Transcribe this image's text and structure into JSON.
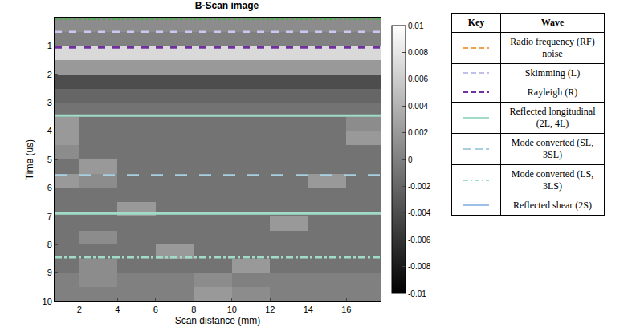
{
  "chart_data": {
    "type": "heatmap",
    "title": "B-Scan image",
    "x_label": "Scan distance (mm)",
    "y_label": "Time (us)",
    "xlim": [
      0.7,
      17.8
    ],
    "xticks": [
      2,
      4,
      6,
      8,
      10,
      12,
      14,
      16
    ],
    "ylim": [
      10,
      0
    ],
    "yticks": [
      1,
      2,
      3,
      4,
      5,
      6,
      7,
      8,
      9,
      10
    ],
    "x": [
      1,
      3,
      5,
      7,
      9,
      11,
      13,
      15,
      17
    ],
    "y": [
      0.25,
      0.75,
      1.25,
      1.75,
      2.25,
      2.75,
      3.25,
      3.75,
      4.25,
      4.75,
      5.25,
      5.75,
      6.25,
      6.75,
      7.25,
      7.75,
      8.25,
      8.75,
      9.25,
      9.75
    ],
    "z": [
      [
        0.001,
        0.001,
        0.001,
        0.001,
        0.001,
        0.001,
        0.001,
        0.001,
        0.001
      ],
      [
        0,
        0,
        0,
        0,
        0,
        0,
        0,
        0,
        0
      ],
      [
        0.007,
        0.007,
        0.007,
        0.007,
        0.007,
        0.007,
        0.007,
        0.007,
        0.007
      ],
      [
        0.002,
        0.002,
        0.002,
        0.002,
        0.002,
        0.002,
        0.002,
        0.002,
        0.002
      ],
      [
        -0.004,
        -0.004,
        -0.004,
        -0.004,
        -0.004,
        -0.004,
        -0.004,
        -0.004,
        -0.004
      ],
      [
        -0.002,
        -0.002,
        -0.002,
        -0.002,
        -0.002,
        -0.002,
        -0.002,
        -0.002,
        -0.002
      ],
      [
        -0.001,
        -0.001,
        -0.001,
        -0.001,
        -0.001,
        -0.001,
        -0.001,
        -0.001,
        -0.001
      ],
      [
        0.002,
        -0.001,
        -0.001,
        -0.001,
        -0.001,
        -0.001,
        -0.001,
        -0.001,
        0.001
      ],
      [
        0.002,
        -0.001,
        -0.001,
        -0.001,
        -0.001,
        -0.001,
        -0.001,
        -0.001,
        0.002
      ],
      [
        0.001,
        -0.001,
        -0.001,
        -0.001,
        -0.001,
        -0.001,
        -0.001,
        -0.001,
        -0.001
      ],
      [
        -0.001,
        0.002,
        -0.001,
        -0.001,
        -0.001,
        -0.001,
        -0.001,
        -0.001,
        -0.001
      ],
      [
        0.002,
        0.001,
        -0.001,
        -0.001,
        -0.001,
        -0.001,
        -0.001,
        0.002,
        -0.001
      ],
      [
        -0.001,
        -0.001,
        -0.001,
        -0.001,
        -0.001,
        -0.001,
        -0.001,
        -0.001,
        -0.001
      ],
      [
        -0.001,
        -0.001,
        0.002,
        -0.001,
        -0.001,
        -0.001,
        -0.001,
        -0.001,
        -0.001
      ],
      [
        -0.001,
        -0.001,
        -0.001,
        -0.001,
        -0.001,
        -0.001,
        0.002,
        -0.001,
        -0.001
      ],
      [
        -0.001,
        0.001,
        -0.001,
        -0.001,
        -0.001,
        -0.001,
        -0.001,
        -0.001,
        -0.001
      ],
      [
        -0.001,
        -0.001,
        -0.001,
        0.002,
        -0.001,
        -0.001,
        -0.001,
        -0.001,
        -0.001
      ],
      [
        -0.001,
        0.001,
        -0.001,
        -0.001,
        -0.001,
        0.002,
        -0.001,
        -0.001,
        -0.001
      ],
      [
        0,
        0.001,
        0,
        0,
        0.001,
        0,
        0,
        0,
        0
      ],
      [
        0,
        0,
        0,
        0,
        0.002,
        0.001,
        0,
        0,
        0
      ]
    ],
    "colorbar": {
      "range": [
        -0.01,
        0.01
      ],
      "ticks": [
        0.01,
        0.008,
        0.006,
        0.004,
        0.002,
        0,
        -0.002,
        -0.004,
        -0.006,
        -0.008,
        -0.01
      ]
    },
    "lines": [
      {
        "time": 0.05,
        "color": "#4cae4c",
        "line_style": "dot"
      },
      {
        "time": 0.5,
        "color": "#c8c8f0",
        "line_style": "dash"
      },
      {
        "time": 1.05,
        "color": "#7030a0",
        "line_style": "dash"
      },
      {
        "time": 3.45,
        "color": "#a0dcc8",
        "line_style": "solid"
      },
      {
        "time": 5.55,
        "color": "#a8d0e0",
        "line_style": "longdash"
      },
      {
        "time": 6.9,
        "color": "#a0dcc8",
        "line_style": "solid"
      },
      {
        "time": 8.45,
        "color": "#a0dcc8",
        "line_style": "dashdot"
      }
    ]
  },
  "key": {
    "header": [
      "Key",
      "Wave"
    ],
    "rows": [
      {
        "wave": "Radio frequency (RF) noise",
        "color": "#f5a04a",
        "line_style": "dash"
      },
      {
        "wave": "Skimming (L)",
        "color": "#c0c0e8",
        "line_style": "dash"
      },
      {
        "wave": "Rayleigh (R)",
        "color": "#7030a0",
        "line_style": "dash"
      },
      {
        "wave": "Reflected longitudinal (2L, 4L)",
        "color": "#a0dcc8",
        "line_style": "solid"
      },
      {
        "wave": "Mode converted (SL, 3SL)",
        "color": "#a8d0e0",
        "line_style": "longdash"
      },
      {
        "wave": "Mode converted (LS, 3LS)",
        "color": "#a0dcc8",
        "line_style": "dashdot"
      },
      {
        "wave": "Reflected shear (2S)",
        "color": "#9cc0e8",
        "line_style": "solid"
      }
    ]
  }
}
